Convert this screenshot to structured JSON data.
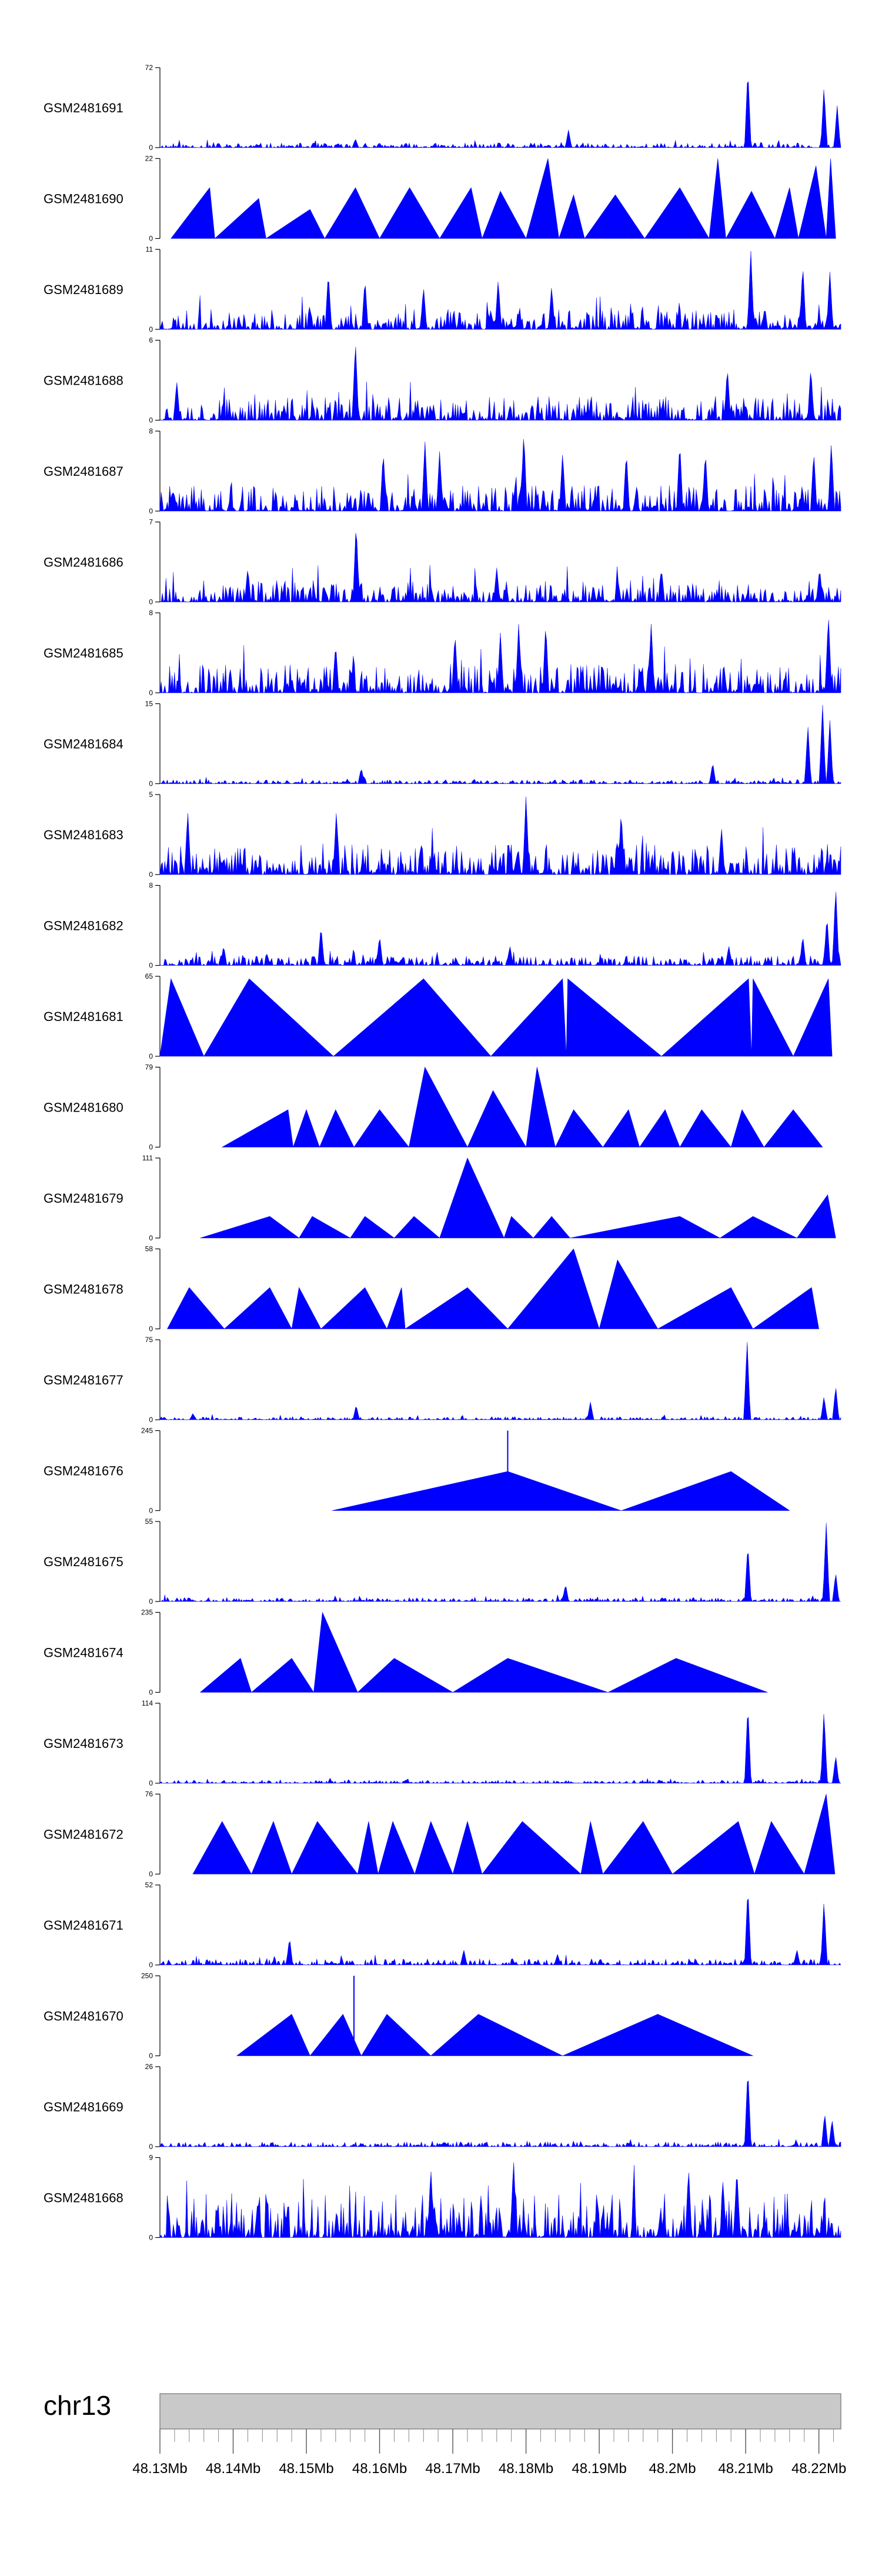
{
  "chart_data": {
    "type": "area",
    "title": "",
    "chromosome": "chr13",
    "x_range_mb": [
      48.13,
      48.223
    ],
    "x_ticks": [
      "48.13Mb",
      "48.14Mb",
      "48.15Mb",
      "48.16Mb",
      "48.17Mb",
      "48.18Mb",
      "48.19Mb",
      "48.2Mb",
      "48.21Mb",
      "48.22Mb"
    ],
    "x_tick_values": [
      48.13,
      48.14,
      48.15,
      48.16,
      48.17,
      48.18,
      48.19,
      48.2,
      48.21,
      48.22
    ],
    "series_color": "#0000ff",
    "tracks": [
      {
        "name": "GSM2481691",
        "ymax": 72,
        "ymin": 0,
        "style": "dense",
        "noise": 0.06,
        "seed": 11,
        "peaks": [
          [
            48.1567,
            8
          ],
          [
            48.1858,
            16
          ],
          [
            48.2103,
            72
          ],
          [
            48.2207,
            55
          ],
          [
            48.2225,
            38
          ]
        ]
      },
      {
        "name": "GSM2481690",
        "ymax": 22,
        "ymin": 0,
        "style": "tri",
        "tri": [
          [
            48.1315,
            48.1368,
            48.1375,
            14
          ],
          [
            48.1375,
            48.1435,
            48.1445,
            11
          ],
          [
            48.1445,
            48.1505,
            48.1525,
            8
          ],
          [
            48.1525,
            48.1567,
            48.16,
            14
          ],
          [
            48.16,
            48.1641,
            48.1682,
            14
          ],
          [
            48.1682,
            48.1725,
            48.174,
            14
          ],
          [
            48.174,
            48.1765,
            48.18,
            13
          ],
          [
            48.18,
            48.183,
            48.1845,
            22
          ],
          [
            48.1845,
            48.1865,
            48.188,
            12
          ],
          [
            48.188,
            48.1922,
            48.1962,
            12
          ],
          [
            48.1962,
            48.201,
            48.205,
            14
          ],
          [
            48.205,
            48.2062,
            48.2073,
            22
          ],
          [
            48.2073,
            48.2108,
            48.214,
            13
          ],
          [
            48.214,
            48.216,
            48.2172,
            14
          ],
          [
            48.2172,
            48.2196,
            48.221,
            20
          ],
          [
            48.221,
            48.2216,
            48.2223,
            22
          ]
        ]
      },
      {
        "name": "GSM2481689",
        "ymax": 11,
        "ymin": 0,
        "style": "dense",
        "noise": 0.25,
        "seed": 23,
        "peaks": [
          [
            48.153,
            8
          ],
          [
            48.158,
            7
          ],
          [
            48.166,
            6
          ],
          [
            48.1762,
            7
          ],
          [
            48.1835,
            6
          ],
          [
            48.2107,
            11
          ],
          [
            48.2178,
            9
          ],
          [
            48.2215,
            8
          ]
        ]
      },
      {
        "name": "GSM2481688",
        "ymax": 6,
        "ymin": 0,
        "style": "dense",
        "noise": 0.3,
        "seed": 37,
        "peaks": [
          [
            48.1567,
            6
          ],
          [
            48.2075,
            4
          ],
          [
            48.2189,
            4
          ],
          [
            48.1323,
            3
          ]
        ]
      },
      {
        "name": "GSM2481687",
        "ymax": 8,
        "ymin": 0,
        "style": "dense",
        "noise": 0.32,
        "seed": 41,
        "peaks": [
          [
            48.1605,
            6
          ],
          [
            48.1662,
            7
          ],
          [
            48.1682,
            6
          ],
          [
            48.1797,
            8
          ],
          [
            48.185,
            6
          ],
          [
            48.1937,
            6
          ],
          [
            48.201,
            7
          ],
          [
            48.2045,
            6
          ],
          [
            48.2193,
            6
          ],
          [
            48.2217,
            7
          ]
        ]
      },
      {
        "name": "GSM2481686",
        "ymax": 7,
        "ymin": 0,
        "style": "dense",
        "noise": 0.27,
        "seed": 53,
        "peaks": [
          [
            48.1568,
            7
          ],
          [
            48.142,
            3
          ],
          [
            48.176,
            3
          ],
          [
            48.1985,
            3
          ],
          [
            48.2201,
            3
          ]
        ]
      },
      {
        "name": "GSM2481685",
        "ymax": 8,
        "ymin": 0,
        "style": "dense",
        "noise": 0.36,
        "seed": 67,
        "peaks": [
          [
            48.154,
            5
          ],
          [
            48.1703,
            6
          ],
          [
            48.1765,
            6
          ],
          [
            48.179,
            7
          ],
          [
            48.1827,
            7
          ],
          [
            48.1971,
            7
          ],
          [
            48.2213,
            8
          ]
        ]
      },
      {
        "name": "GSM2481684",
        "ymax": 15,
        "ymin": 0,
        "style": "dense",
        "noise": 0.05,
        "seed": 71,
        "peaks": [
          [
            48.1575,
            3
          ],
          [
            48.2055,
            4
          ],
          [
            48.2185,
            11
          ],
          [
            48.2205,
            15
          ],
          [
            48.2215,
            12
          ]
        ]
      },
      {
        "name": "GSM2481683",
        "ymax": 5,
        "ymin": 0,
        "style": "dense",
        "noise": 0.38,
        "seed": 83,
        "peaks": [
          [
            48.1338,
            4
          ],
          [
            48.1541,
            4
          ],
          [
            48.18,
            5
          ],
          [
            48.193,
            4
          ],
          [
            48.2067,
            3
          ]
        ]
      },
      {
        "name": "GSM2481682",
        "ymax": 8,
        "ymin": 0,
        "style": "dense",
        "noise": 0.12,
        "seed": 97,
        "peaks": [
          [
            48.1387,
            2
          ],
          [
            48.152,
            4
          ],
          [
            48.16,
            3
          ],
          [
            48.1778,
            2
          ],
          [
            48.2077,
            2
          ],
          [
            48.2178,
            3
          ],
          [
            48.2223,
            8
          ],
          [
            48.2211,
            5
          ]
        ]
      },
      {
        "name": "GSM2481681",
        "ymax": 65,
        "ymin": 0,
        "style": "tri",
        "tri": [
          [
            48.13,
            48.1315,
            48.136,
            63
          ],
          [
            48.136,
            48.1422,
            48.1537,
            63
          ],
          [
            48.1537,
            48.166,
            48.1752,
            63
          ],
          [
            48.1752,
            48.185,
            48.1855,
            63
          ],
          [
            48.1855,
            48.1857,
            48.1985,
            63
          ],
          [
            48.1985,
            48.2104,
            48.2108,
            63
          ],
          [
            48.2108,
            48.211,
            48.2165,
            63
          ],
          [
            48.2165,
            48.2213,
            48.2218,
            63
          ]
        ]
      },
      {
        "name": "GSM2481680",
        "ymax": 79,
        "ymin": 0,
        "style": "tri",
        "tri": [
          [
            48.1385,
            48.1475,
            48.1482,
            37
          ],
          [
            48.1482,
            48.15,
            48.1518,
            37
          ],
          [
            48.1518,
            48.154,
            48.1565,
            37
          ],
          [
            48.1565,
            48.16,
            48.164,
            37
          ],
          [
            48.164,
            48.1662,
            48.172,
            79
          ],
          [
            48.172,
            48.1755,
            48.18,
            56
          ],
          [
            48.18,
            48.1815,
            48.184,
            79
          ],
          [
            48.184,
            48.1865,
            48.1905,
            37
          ],
          [
            48.1905,
            48.194,
            48.1955,
            37
          ],
          [
            48.1955,
            48.199,
            48.201,
            37
          ],
          [
            48.201,
            48.204,
            48.208,
            37
          ],
          [
            48.208,
            48.2095,
            48.2125,
            37
          ],
          [
            48.2125,
            48.2165,
            48.2205,
            37
          ]
        ]
      },
      {
        "name": "GSM2481679",
        "ymax": 111,
        "ymin": 0,
        "style": "tri",
        "tri": [
          [
            48.1355,
            48.145,
            48.149,
            30
          ],
          [
            48.149,
            48.1508,
            48.156,
            30
          ],
          [
            48.156,
            48.158,
            48.162,
            30
          ],
          [
            48.162,
            48.1647,
            48.1682,
            30
          ],
          [
            48.1682,
            48.172,
            48.177,
            111
          ],
          [
            48.177,
            48.178,
            48.181,
            30
          ],
          [
            48.181,
            48.1835,
            48.186,
            30
          ],
          [
            48.186,
            48.201,
            48.2065,
            30
          ],
          [
            48.2065,
            48.211,
            48.217,
            30
          ],
          [
            48.217,
            48.2212,
            48.2223,
            60
          ]
        ]
      },
      {
        "name": "GSM2481678",
        "ymax": 58,
        "ymin": 0,
        "style": "tri",
        "tri": [
          [
            48.131,
            48.134,
            48.1388,
            30
          ],
          [
            48.1388,
            48.145,
            48.148,
            30
          ],
          [
            48.148,
            48.149,
            48.152,
            30
          ],
          [
            48.152,
            48.158,
            48.161,
            30
          ],
          [
            48.161,
            48.163,
            48.1635,
            30
          ],
          [
            48.1635,
            48.172,
            48.1775,
            30
          ],
          [
            48.1775,
            48.1865,
            48.19,
            58
          ],
          [
            48.19,
            48.1925,
            48.198,
            50
          ],
          [
            48.198,
            48.208,
            48.211,
            30
          ],
          [
            48.211,
            48.219,
            48.22,
            30
          ]
        ]
      },
      {
        "name": "GSM2481677",
        "ymax": 75,
        "ymin": 0,
        "style": "dense",
        "noise": 0.04,
        "seed": 101,
        "peaks": [
          [
            48.1345,
            6
          ],
          [
            48.1568,
            14
          ],
          [
            48.1888,
            17
          ],
          [
            48.2102,
            75
          ],
          [
            48.2207,
            22
          ],
          [
            48.2223,
            32
          ]
        ]
      },
      {
        "name": "GSM2481676",
        "ymax": 245,
        "ymin": 0,
        "style": "tri",
        "tri": [
          [
            48.1535,
            48.1775,
            48.193,
            120
          ],
          [
            48.193,
            48.208,
            48.216,
            120
          ]
        ],
        "spikes": [
          [
            48.1775,
            245
          ]
        ]
      },
      {
        "name": "GSM2481675",
        "ymax": 55,
        "ymin": 0,
        "style": "dense",
        "noise": 0.05,
        "seed": 113,
        "peaks": [
          [
            48.1854,
            12
          ],
          [
            48.2103,
            40
          ],
          [
            48.221,
            55
          ],
          [
            48.2223,
            20
          ]
        ]
      },
      {
        "name": "GSM2481674",
        "ymax": 235,
        "ymin": 0,
        "style": "tri",
        "tri": [
          [
            48.1355,
            48.141,
            48.1425,
            100
          ],
          [
            48.1425,
            48.148,
            48.151,
            100
          ],
          [
            48.151,
            48.1522,
            48.157,
            235
          ],
          [
            48.157,
            48.162,
            48.17,
            100
          ],
          [
            48.17,
            48.1775,
            48.1912,
            100
          ],
          [
            48.1912,
            48.2005,
            48.213,
            100
          ]
        ]
      },
      {
        "name": "GSM2481673",
        "ymax": 114,
        "ymin": 0,
        "style": "dense",
        "noise": 0.04,
        "seed": 127,
        "peaks": [
          [
            48.2103,
            114
          ],
          [
            48.2207,
            104
          ],
          [
            48.2223,
            40
          ]
        ]
      },
      {
        "name": "GSM2481672",
        "ymax": 76,
        "ymin": 0,
        "style": "tri",
        "tri": [
          [
            48.1345,
            48.1385,
            48.1425,
            50
          ],
          [
            48.1425,
            48.1455,
            48.148,
            50
          ],
          [
            48.148,
            48.1515,
            48.157,
            50
          ],
          [
            48.157,
            48.1585,
            48.1598,
            50
          ],
          [
            48.1598,
            48.1618,
            48.1648,
            50
          ],
          [
            48.1648,
            48.167,
            48.17,
            50
          ],
          [
            48.17,
            48.172,
            48.174,
            50
          ],
          [
            48.174,
            48.1795,
            48.1875,
            50
          ],
          [
            48.1875,
            48.1888,
            48.1905,
            50
          ],
          [
            48.1905,
            48.196,
            48.2,
            50
          ],
          [
            48.2,
            48.209,
            48.2112,
            50
          ],
          [
            48.2112,
            48.2135,
            48.218,
            50
          ],
          [
            48.218,
            48.221,
            48.2222,
            76
          ]
        ]
      },
      {
        "name": "GSM2481671",
        "ymax": 52,
        "ymin": 0,
        "style": "dense",
        "noise": 0.08,
        "seed": 131,
        "peaks": [
          [
            48.1477,
            18
          ],
          [
            48.1715,
            10
          ],
          [
            48.1843,
            7
          ],
          [
            48.2103,
            52
          ],
          [
            48.217,
            10
          ],
          [
            48.2207,
            42
          ]
        ]
      },
      {
        "name": "GSM2481670",
        "ymax": 250,
        "ymin": 0,
        "style": "tri",
        "tri": [
          [
            48.1405,
            48.148,
            48.1505,
            130
          ],
          [
            48.1505,
            48.155,
            48.1575,
            130
          ],
          [
            48.1575,
            48.161,
            48.167,
            130
          ],
          [
            48.167,
            48.1735,
            48.185,
            130
          ],
          [
            48.185,
            48.198,
            48.211,
            130
          ]
        ],
        "spikes": [
          [
            48.1565,
            250
          ]
        ]
      },
      {
        "name": "GSM2481669",
        "ymax": 26,
        "ymin": 0,
        "style": "dense",
        "noise": 0.06,
        "seed": 149,
        "peaks": [
          [
            48.2103,
            26
          ],
          [
            48.2208,
            11
          ],
          [
            48.2218,
            9
          ]
        ]
      },
      {
        "name": "GSM2481668",
        "ymax": 9,
        "ymin": 0,
        "style": "dense",
        "noise": 0.55,
        "seed": 157,
        "peaks": [
          [
            48.167,
            8
          ],
          [
            48.1783,
            9
          ],
          [
            48.2022,
            8
          ],
          [
            48.2088,
            8
          ]
        ]
      }
    ]
  }
}
